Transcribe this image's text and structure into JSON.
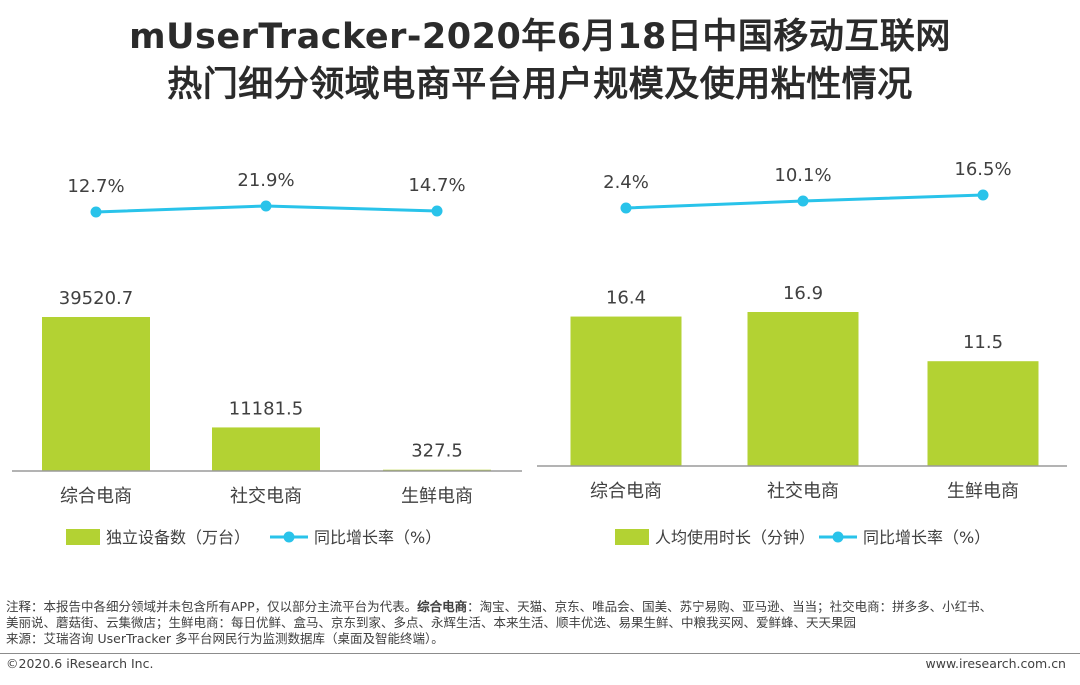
{
  "title_line1": "mUserTracker-2020年6月18日中国移动互联网",
  "title_line2": "热门细分领域电商平台用户规模及使用粘性情况",
  "colors": {
    "bar": "#b3d233",
    "line": "#29c3ea",
    "axis": "#9a9a9a"
  },
  "chart_data": [
    {
      "type": "bar+line",
      "categories": [
        "综合电商",
        "社交电商",
        "生鲜电商"
      ],
      "bar_series": {
        "name": "独立设备数（万台）",
        "values": [
          39520.7,
          11181.5,
          327.5
        ],
        "labels": [
          "39520.7",
          "11181.5",
          "327.5"
        ]
      },
      "line_series": {
        "name": "同比增长率（%）",
        "values": [
          12.7,
          21.9,
          14.7
        ],
        "labels": [
          "12.7%",
          "21.9%",
          "14.7%"
        ]
      }
    },
    {
      "type": "bar+line",
      "categories": [
        "综合电商",
        "社交电商",
        "生鲜电商"
      ],
      "bar_series": {
        "name": "人均使用时长（分钟）",
        "values": [
          16.4,
          16.9,
          11.5
        ],
        "labels": [
          "16.4",
          "16.9",
          "11.5"
        ]
      },
      "line_series": {
        "name": "同比增长率（%）",
        "values": [
          2.4,
          10.1,
          16.5
        ],
        "labels": [
          "2.4%",
          "10.1%",
          "16.5%"
        ]
      }
    }
  ],
  "notes": {
    "note_prefix": "注释：本报告中各细分领域并未包含所有APP，仅以部分主流平台为代表。",
    "note_bold": "综合电商",
    "note_rest1": "：淘宝、天猫、京东、唯品会、国美、苏宁易购、亚马逊、当当；社交电商：拼多多、小红书、",
    "note_line2": "美丽说、蘑菇街、云集微店；生鲜电商：每日优鲜、盒马、京东到家、多点、永辉生活、本来生活、顺丰优选、易果生鲜、中粮我买网、爱鲜蜂、天天果园",
    "source": "来源：艾瑞咨询 UserTracker 多平台网民行为监测数据库（桌面及智能终端）。"
  },
  "footer": {
    "copyright": "©2020.6 iResearch Inc.",
    "website": "www.iresearch.com.cn"
  }
}
